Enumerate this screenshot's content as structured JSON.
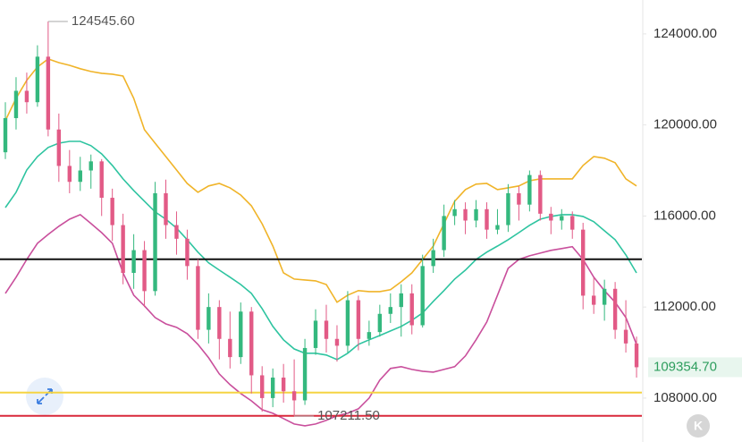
{
  "chart_data": {
    "type": "candlestick",
    "ylim": [
      106070,
      125490
    ],
    "yticks": [
      {
        "value": 108000,
        "label": "108000.00"
      },
      {
        "value": 112000,
        "label": "112000.00"
      },
      {
        "value": 116000,
        "label": "116000.00"
      },
      {
        "value": 120000,
        "label": "120000.00"
      },
      {
        "value": 124000,
        "label": "124000.00"
      }
    ],
    "up_color": "#34b87e",
    "down_color": "#e25a86",
    "open": [
      118800,
      120300,
      121500,
      121000,
      123000,
      119800,
      118200,
      117500,
      118000,
      118400,
      116800,
      115600,
      113500,
      114500,
      112700,
      117000,
      115600,
      115000,
      113800,
      111000,
      112000,
      110600,
      109800,
      111800,
      109000,
      108000,
      108900,
      108300,
      107900,
      110200,
      111400,
      110600,
      110300,
      112300,
      110600,
      110900,
      111700,
      112000,
      112600,
      111200,
      113800,
      114500,
      116000,
      116300,
      115800,
      116300,
      115400,
      115600,
      117000,
      116500,
      117800,
      116100,
      115800,
      116000,
      115400,
      112500,
      112100,
      112800,
      111000,
      110400
    ],
    "high": [
      121000,
      122100,
      122300,
      123500,
      124545.6,
      120500,
      118900,
      118600,
      118700,
      118500,
      117200,
      116100,
      115200,
      114900,
      117500,
      117600,
      116200,
      115400,
      114100,
      112600,
      112300,
      111800,
      112200,
      112000,
      109400,
      109300,
      109500,
      109700,
      110600,
      111900,
      112100,
      111200,
      112700,
      112500,
      111400,
      112100,
      112600,
      113000,
      113000,
      114300,
      115000,
      116500,
      116700,
      116600,
      116700,
      116600,
      116300,
      117400,
      117300,
      118000,
      118000,
      116400,
      116300,
      116200,
      115700,
      113300,
      113200,
      113100,
      112300,
      110700
    ],
    "low": [
      118500,
      119800,
      120500,
      120800,
      119500,
      117500,
      117000,
      117100,
      117200,
      116000,
      114900,
      113000,
      112800,
      112000,
      112500,
      115000,
      114300,
      113200,
      110600,
      110400,
      109700,
      109300,
      109500,
      108200,
      107400,
      107600,
      107800,
      107211.5,
      107700,
      109900,
      110000,
      109600,
      110000,
      110100,
      110300,
      110700,
      111300,
      110700,
      110800,
      111100,
      113500,
      114200,
      115600,
      115200,
      115500,
      115000,
      115200,
      115300,
      115800,
      116200,
      115800,
      115200,
      115400,
      115000,
      111900,
      111700,
      111400,
      110600,
      110000,
      108900
    ],
    "close": [
      120300,
      121500,
      121000,
      123000,
      119800,
      118200,
      117500,
      118000,
      118400,
      116800,
      115600,
      113500,
      114500,
      112700,
      117000,
      115600,
      115000,
      113800,
      111000,
      112000,
      110600,
      109800,
      111800,
      109000,
      108000,
      108900,
      108300,
      107900,
      110200,
      111400,
      110600,
      110300,
      112300,
      110600,
      110900,
      111700,
      112000,
      112600,
      111200,
      113800,
      114500,
      116000,
      116300,
      115800,
      116300,
      115400,
      115600,
      117000,
      116500,
      117800,
      116100,
      115800,
      116000,
      115400,
      112500,
      112100,
      112800,
      111000,
      110400,
      109354.7
    ],
    "series": [
      {
        "color": "#f0b429",
        "values": [
          120190,
          121170,
          121960,
          122550,
          122900,
          122740,
          122620,
          122470,
          122350,
          122270,
          122230,
          122150,
          121170,
          119790,
          119200,
          118610,
          118020,
          117430,
          117040,
          117320,
          117430,
          117240,
          116920,
          116450,
          115660,
          114680,
          113500,
          113230,
          113190,
          113150,
          112990,
          112210,
          112520,
          112720,
          112680,
          112680,
          112760,
          113110,
          113500,
          114090,
          114680,
          115660,
          116650,
          117160,
          117400,
          117430,
          117160,
          117240,
          117320,
          117550,
          117630,
          117630,
          117630,
          117630,
          118220,
          118610,
          118540,
          118340,
          117630,
          117320
        ]
      },
      {
        "color": "#2ec4a0",
        "values": [
          116370,
          117040,
          118020,
          118610,
          119010,
          119200,
          119280,
          119280,
          119090,
          118730,
          118220,
          117630,
          117120,
          116650,
          116180,
          115860,
          115470,
          114960,
          114410,
          113940,
          113620,
          113310,
          112990,
          112600,
          111930,
          111150,
          110560,
          110160,
          109970,
          109970,
          109890,
          109690,
          109970,
          110360,
          110560,
          110750,
          110950,
          111150,
          111420,
          111740,
          112250,
          112720,
          113230,
          113620,
          114090,
          114410,
          114680,
          114960,
          115270,
          115590,
          115860,
          115980,
          116060,
          116060,
          115980,
          115750,
          115350,
          114960,
          114290,
          113500
        ]
      },
      {
        "color": "#c94f9c",
        "values": [
          112600,
          113310,
          114090,
          114800,
          115190,
          115550,
          115860,
          116060,
          115670,
          115270,
          114800,
          113500,
          112520,
          112050,
          111540,
          111260,
          111110,
          110830,
          110360,
          109770,
          109060,
          108590,
          108200,
          107880,
          107490,
          107330,
          107100,
          106860,
          106780,
          106860,
          107020,
          107220,
          107330,
          107530,
          108000,
          108790,
          109300,
          109380,
          109260,
          109180,
          109140,
          109260,
          109380,
          109850,
          110560,
          111340,
          112520,
          113700,
          114090,
          114250,
          114370,
          114490,
          114570,
          114650,
          114090,
          113310,
          112720,
          112210,
          111540,
          110360
        ]
      }
    ],
    "levels": [
      {
        "value": 114100,
        "color": "#111111"
      },
      {
        "value": 108240,
        "color": "#f5d442"
      },
      {
        "value": 107220,
        "color": "#d9283a"
      }
    ],
    "annotations": [
      {
        "index": 4,
        "value": 124545.6,
        "label": "124545.60"
      },
      {
        "index": 27,
        "value": 107211.5,
        "label": "107211.50"
      }
    ],
    "last_price": {
      "value": 109354.7,
      "label": "109354.70",
      "color": "#2e9e5e"
    },
    "button_label": "K"
  }
}
